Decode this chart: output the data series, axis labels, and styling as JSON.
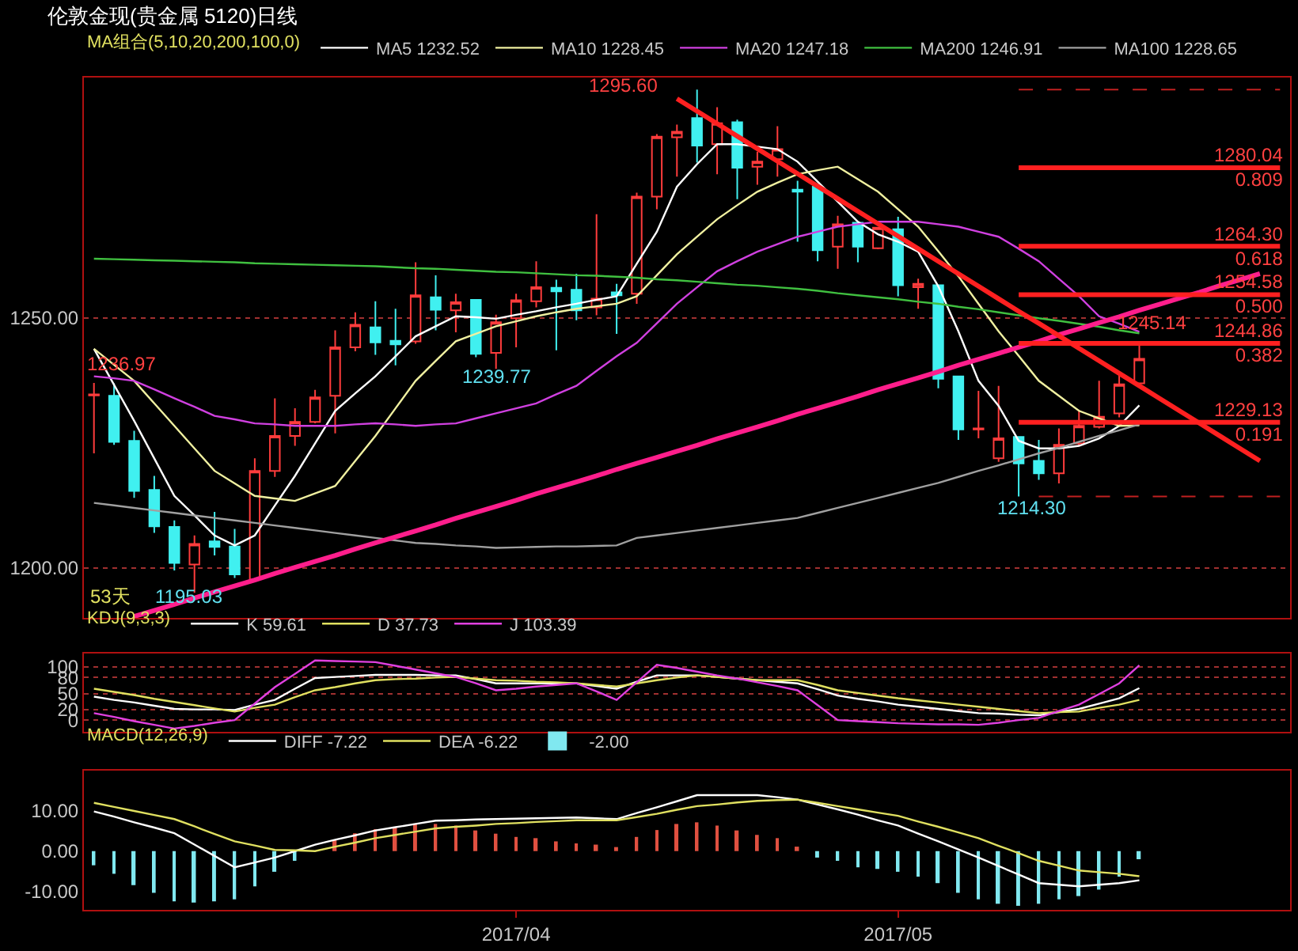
{
  "chart_data": [
    {
      "type": "candlestick",
      "title": "伦敦金现(贵金属 5120)日线",
      "legend_title": "MA组合(5,10,20,200,100,0)",
      "legend": "top",
      "grid": "y",
      "tick_labels": "y",
      "categories": [
        null,
        null,
        null,
        null,
        null,
        null,
        null,
        null,
        null,
        null,
        null,
        null,
        null,
        null,
        null,
        null,
        null,
        null,
        null,
        null,
        null,
        "2017/04",
        null,
        null,
        null,
        null,
        null,
        null,
        null,
        null,
        null,
        null,
        null,
        null,
        null,
        null,
        null,
        null,
        null,
        null,
        "2017/05",
        null,
        null,
        null,
        null,
        null,
        null,
        null,
        null,
        null,
        null,
        null,
        null,
        null,
        null,
        null,
        null,
        null,
        null,
        null
      ],
      "ohlc": [
        [
          1234.5,
          1236.97,
          1222.9,
          1234.7
        ],
        [
          1234.4,
          1236.9,
          1224.6,
          1225.2
        ],
        [
          1225.4,
          1227.4,
          1214.0,
          1215.4
        ],
        [
          1215.6,
          1218.4,
          1207.0,
          1208.3
        ],
        [
          1208.2,
          1209.5,
          1199.5,
          1201.0
        ],
        [
          1200.7,
          1206.5,
          1195.03,
          1204.8
        ],
        [
          1205.3,
          1211.2,
          1202.5,
          1204.2
        ],
        [
          1204.3,
          1207.8,
          1198.0,
          1198.7
        ],
        [
          1197.7,
          1221.9,
          1197.5,
          1219.4
        ],
        [
          1219.4,
          1233.9,
          1218.2,
          1226.4
        ],
        [
          1226.4,
          1231.9,
          1224.4,
          1229.2
        ],
        [
          1229.2,
          1235.6,
          1228.9,
          1234.1
        ],
        [
          1234.4,
          1247.5,
          1226.9,
          1244.1
        ],
        [
          1244.1,
          1251.1,
          1243.3,
          1248.6
        ],
        [
          1248.1,
          1253.3,
          1242.6,
          1245.1
        ],
        [
          1245.4,
          1251.8,
          1240.5,
          1244.7
        ],
        [
          1245.3,
          1261.1,
          1244.8,
          1254.5
        ],
        [
          1254.1,
          1258.5,
          1247.5,
          1251.6
        ],
        [
          1251.5,
          1254.8,
          1247.1,
          1253.1
        ],
        [
          1253.6,
          1253.6,
          1242.1,
          1242.8
        ],
        [
          1243.0,
          1250.6,
          1239.77,
          1249.1
        ],
        [
          1249.9,
          1254.8,
          1244.1,
          1253.5
        ],
        [
          1253.3,
          1261.3,
          1252.1,
          1256.1
        ],
        [
          1256.0,
          1257.6,
          1243.5,
          1255.3
        ],
        [
          1255.6,
          1258.8,
          1249.5,
          1251.5
        ],
        [
          1252.1,
          1270.7,
          1250.5,
          1253.8
        ],
        [
          1255.1,
          1256.8,
          1246.8,
          1254.5
        ],
        [
          1254.8,
          1275.0,
          1252.8,
          1274.2
        ],
        [
          1274.2,
          1286.7,
          1271.7,
          1286.2
        ],
        [
          1286.1,
          1288.6,
          1278.2,
          1287.2
        ],
        [
          1289.9,
          1295.6,
          1281.0,
          1284.4
        ],
        [
          1284.7,
          1292.1,
          1278.7,
          1288.9
        ],
        [
          1289.1,
          1289.6,
          1273.7,
          1280.0
        ],
        [
          1280.2,
          1283.2,
          1276.6,
          1281.2
        ],
        [
          1281.7,
          1288.3,
          1278.2,
          1283.7
        ],
        [
          1275.6,
          1277.4,
          1265.2,
          1275.2
        ],
        [
          1276.2,
          1276.2,
          1261.3,
          1263.5
        ],
        [
          1264.2,
          1270.4,
          1259.8,
          1268.7
        ],
        [
          1269.0,
          1269.0,
          1261.1,
          1264.2
        ],
        [
          1263.9,
          1268.0,
          1263.7,
          1268.0
        ],
        [
          1267.7,
          1270.2,
          1254.3,
          1256.5
        ],
        [
          1256.1,
          1257.8,
          1251.8,
          1256.8
        ],
        [
          1256.5,
          1256.5,
          1235.9,
          1237.8
        ],
        [
          1238.3,
          1238.3,
          1225.6,
          1227.7
        ],
        [
          1227.7,
          1235.4,
          1225.9,
          1227.9
        ],
        [
          1221.9,
          1236.4,
          1221.2,
          1225.9
        ],
        [
          1226.2,
          1226.2,
          1214.3,
          1220.9
        ],
        [
          1221.4,
          1225.6,
          1217.6,
          1218.9
        ],
        [
          1218.9,
          1227.9,
          1216.9,
          1224.6
        ],
        [
          1224.9,
          1231.6,
          1224.4,
          1228.4
        ],
        [
          1228.2,
          1237.4,
          1227.9,
          1230.2
        ],
        [
          1230.9,
          1239.3,
          1230.1,
          1236.7
        ],
        [
          1236.9,
          1245.14,
          1236.4,
          1241.8
        ],
        null,
        null,
        null,
        null,
        null,
        null,
        null
      ],
      "colors": [
        "#ff3c3c",
        "#40f0f0",
        "#40f0f0",
        "#40f0f0",
        "#40f0f0",
        "#ff3c3c",
        "#40f0f0",
        "#40f0f0",
        "#ff3c3c",
        "#ff3c3c",
        "#ff3c3c",
        "#ff3c3c",
        "#ff3c3c",
        "#ff3c3c",
        "#40f0f0",
        "#40f0f0",
        "#ff3c3c",
        "#40f0f0",
        "#ff3c3c",
        "#40f0f0",
        "#ff3c3c",
        "#ff3c3c",
        "#ff3c3c",
        "#40f0f0",
        "#40f0f0",
        "#ff3c3c",
        "#40f0f0",
        "#ff3c3c",
        "#ff3c3c",
        "#ff3c3c",
        "#40f0f0",
        "#ff3c3c",
        "#40f0f0",
        "#ff3c3c",
        "#ff3c3c",
        "#40f0f0",
        "#40f0f0",
        "#ff3c3c",
        "#40f0f0",
        "#ff3c3c",
        "#40f0f0",
        "#ff3c3c",
        "#40f0f0",
        "#40f0f0",
        "#ff3c3c",
        "#ff3c3c",
        "#40f0f0",
        "#40f0f0",
        "#ff3c3c",
        "#ff3c3c",
        "#ff3c3c",
        "#ff3c3c",
        "#ff3c3c",
        "#ff3c3c",
        "#ff3c3c",
        "#ff3c3c",
        "#ff3c3c",
        "#ff3c3c",
        "#ff3c3c",
        "#ff3c3c"
      ],
      "ylim": [
        1190,
        1298
      ],
      "yticks": [
        {
          "value": 1200,
          "label": "1200.00"
        },
        {
          "value": 1250,
          "label": "1250.00"
        }
      ],
      "series": [
        {
          "type": "line",
          "name": "MA5 1232.52",
          "color": "#ffffff",
          "values": [
            1243.8,
            1236.6,
            1229.4,
            1221.9,
            1214.4,
            1210.5,
            1206.5,
            1204.5,
            1206.5,
            1212.5,
            1218.4,
            1224.9,
            1231.4,
            1234.9,
            1238.3,
            1242.3,
            1246.3,
            1248.3,
            1250.3,
            1250.1,
            1249.8,
            1250.6,
            1251.3,
            1252.1,
            1252.8,
            1253.6,
            1254.3,
            1260.8,
            1267.2,
            1276.2,
            1280.7,
            1284.7,
            1284.7,
            1284.2,
            1283.7,
            1281.2,
            1277.2,
            1273.2,
            1269.2,
            1266.7,
            1265.2,
            1263.2,
            1256.3,
            1247.3,
            1237.4,
            1232.4,
            1225.4,
            1223.9,
            1223.9,
            1224.4,
            1225.9,
            1228.4,
            1232.5,
            null,
            null,
            null,
            null,
            null,
            null,
            null
          ]
        },
        {
          "type": "line",
          "name": "MA10 1228.45",
          "color": "#f0f0a0",
          "values": [
            1243.8,
            1240.6,
            1237.4,
            1232.9,
            1228.4,
            1223.9,
            1219.4,
            1216.9,
            1214.4,
            1213.9,
            1213.4,
            1214.9,
            1216.4,
            1221.4,
            1226.4,
            1231.9,
            1237.4,
            1241.4,
            1245.3,
            1246.8,
            1248.3,
            1249.3,
            1250.3,
            1251.1,
            1251.8,
            1252.3,
            1252.8,
            1254.3,
            1258.5,
            1262.7,
            1266.2,
            1269.7,
            1272.5,
            1275.2,
            1277.0,
            1278.7,
            1279.5,
            1280.2,
            1277.7,
            1275.2,
            1271.7,
            1268.2,
            1263.3,
            1258.3,
            1252.8,
            1247.3,
            1242.4,
            1237.4,
            1234.4,
            1231.4,
            1229.9,
            1228.4,
            1228.5,
            null,
            null,
            null,
            null,
            null,
            null,
            null
          ]
        },
        {
          "type": "line",
          "name": "MA20 1247.18",
          "color": "#d040e0",
          "values": [
            1238.3,
            1237.9,
            1237.4,
            1235.7,
            1233.9,
            1232.2,
            1230.4,
            1229.7,
            1228.9,
            1228.7,
            1228.4,
            1228.4,
            1228.4,
            1228.7,
            1228.9,
            1228.7,
            1228.4,
            1228.7,
            1228.9,
            1229.9,
            1230.9,
            1231.9,
            1232.9,
            1234.7,
            1236.4,
            1239.4,
            1242.3,
            1245.0,
            1248.9,
            1252.8,
            1256.1,
            1259.3,
            1261.3,
            1263.2,
            1264.7,
            1266.2,
            1267.2,
            1268.2,
            1268.7,
            1269.2,
            1269.2,
            1269.2,
            1268.7,
            1268.2,
            1267.2,
            1266.2,
            1263.8,
            1261.3,
            1257.8,
            1254.3,
            1250.3,
            1248.8,
            1247.2,
            null,
            null,
            null,
            null,
            null,
            null,
            null
          ]
        },
        {
          "type": "line",
          "name": "MA200 1246.91",
          "color": "#40c040",
          "values": [
            1261.8,
            1261.7,
            1261.6,
            1261.5,
            1261.4,
            1261.3,
            1261.2,
            1261.1,
            1260.9,
            1260.8,
            1260.7,
            1260.6,
            1260.5,
            1260.4,
            1260.3,
            1260.1,
            1259.9,
            1259.8,
            1259.6,
            1259.4,
            1259.2,
            1259.1,
            1258.9,
            1258.7,
            1258.5,
            1258.4,
            1258.2,
            1258.0,
            1257.7,
            1257.5,
            1257.2,
            1256.9,
            1256.6,
            1256.4,
            1256.1,
            1255.8,
            1255.4,
            1254.9,
            1254.5,
            1254.1,
            1253.7,
            1253.2,
            1252.8,
            1252.2,
            1251.7,
            1251.1,
            1250.5,
            1249.9,
            1249.4,
            1248.8,
            1248.2,
            1247.5,
            1246.9,
            null,
            null,
            null,
            null,
            null,
            null,
            null
          ]
        },
        {
          "type": "line",
          "name": "MA100 1228.65",
          "color": "#a0a0a0",
          "values": [
            1213.0,
            1212.5,
            1212.0,
            1211.5,
            1211.0,
            1210.5,
            1210.0,
            1209.5,
            1209.0,
            1208.5,
            1208.0,
            1207.5,
            1207.0,
            1206.5,
            1206.0,
            1205.5,
            1205.0,
            1204.8,
            1204.5,
            1204.3,
            1204.0,
            1204.1,
            1204.2,
            1204.3,
            1204.3,
            1204.4,
            1204.5,
            1206.0,
            1206.5,
            1207.0,
            1207.5,
            1208.0,
            1208.5,
            1209.0,
            1209.5,
            1210.0,
            1211.0,
            1212.0,
            1213.0,
            1214.0,
            1215.0,
            1216.0,
            1217.0,
            1218.2,
            1219.4,
            1220.5,
            1221.7,
            1222.9,
            1224.0,
            1225.2,
            1226.4,
            1227.5,
            1228.7,
            null,
            null,
            null,
            null,
            null,
            null,
            null
          ]
        },
        {
          "type": "line",
          "color": "#ff1e8c",
          "values": [
            null,
            null,
            1190.3,
            1191.5,
            1192.7,
            1194.0,
            1195.2,
            1196.4,
            1197.6,
            1198.9,
            1200.1,
            1201.3,
            1202.5,
            1203.8,
            1205.0,
            1206.2,
            1207.4,
            1208.6,
            1209.9,
            1211.1,
            1212.3,
            1213.5,
            1214.8,
            1216.0,
            1217.2,
            1218.4,
            1219.7,
            1220.9,
            1222.1,
            1223.3,
            1224.5,
            1225.8,
            1227.0,
            1228.2,
            1229.4,
            1230.7,
            1231.9,
            1233.1,
            1234.3,
            1235.6,
            1236.8,
            1238.0,
            1239.2,
            1240.5,
            1241.7,
            1242.9,
            1244.1,
            1245.3,
            1246.6,
            1247.8,
            1249.0,
            1250.2,
            1251.5,
            1252.7,
            1253.9,
            1255.1,
            1256.4,
            1257.6,
            1258.8,
            null
          ]
        },
        {
          "type": "line",
          "color": "#ff2020",
          "values": [
            null,
            null,
            null,
            null,
            null,
            null,
            null,
            null,
            null,
            null,
            null,
            null,
            null,
            null,
            null,
            null,
            null,
            null,
            null,
            null,
            null,
            null,
            null,
            null,
            null,
            null,
            null,
            null,
            null,
            1293.8,
            1291.3,
            1288.8,
            1286.3,
            1283.8,
            1281.3,
            1278.8,
            1276.3,
            1273.8,
            1271.3,
            1268.8,
            1266.3,
            1263.8,
            1261.3,
            1258.8,
            1256.3,
            1253.8,
            1251.3,
            1248.9,
            1246.4,
            1243.9,
            1241.4,
            1238.9,
            1236.4,
            1233.9,
            1231.4,
            1228.9,
            1226.4,
            1223.9,
            1221.4,
            null
          ]
        },
        {
          "type": "line",
          "color": "#ff2020",
          "values": [
            null,
            null,
            null,
            null,
            null,
            null,
            null,
            null,
            null,
            null,
            null,
            null,
            null,
            null,
            null,
            null,
            null,
            null,
            null,
            null,
            null,
            null,
            null,
            null,
            null,
            null,
            null,
            null,
            null,
            null,
            null,
            null,
            null,
            null,
            null,
            null,
            null,
            null,
            null,
            null,
            null,
            null,
            null,
            null,
            null,
            null,
            1280.0,
            1280.0,
            1280.0,
            1280.0,
            1280.0,
            1280.0,
            1280.0,
            1280.0,
            1280.0,
            1280.0,
            1280.0,
            1280.0,
            1280.0,
            1280.0
          ]
        },
        {
          "type": "line",
          "color": "#ff2020",
          "values": [
            null,
            null,
            null,
            null,
            null,
            null,
            null,
            null,
            null,
            null,
            null,
            null,
            null,
            null,
            null,
            null,
            null,
            null,
            null,
            null,
            null,
            null,
            null,
            null,
            null,
            null,
            null,
            null,
            null,
            null,
            null,
            null,
            null,
            null,
            null,
            null,
            null,
            null,
            null,
            null,
            null,
            null,
            null,
            null,
            null,
            null,
            1264.3,
            1264.3,
            1264.3,
            1264.3,
            1264.3,
            1264.3,
            1264.3,
            1264.3,
            1264.3,
            1264.3,
            1264.3,
            1264.3,
            1264.3,
            1264.3
          ]
        },
        {
          "type": "line",
          "color": "#ff2020",
          "values": [
            null,
            null,
            null,
            null,
            null,
            null,
            null,
            null,
            null,
            null,
            null,
            null,
            null,
            null,
            null,
            null,
            null,
            null,
            null,
            null,
            null,
            null,
            null,
            null,
            null,
            null,
            null,
            null,
            null,
            null,
            null,
            null,
            null,
            null,
            null,
            null,
            null,
            null,
            null,
            null,
            null,
            null,
            null,
            null,
            null,
            null,
            1254.6,
            1254.6,
            1254.6,
            1254.6,
            1254.6,
            1254.6,
            1254.6,
            1254.6,
            1254.6,
            1254.6,
            1254.6,
            1254.6,
            1254.6,
            1254.6
          ]
        },
        {
          "type": "line",
          "color": "#ff2020",
          "values": [
            null,
            null,
            null,
            null,
            null,
            null,
            null,
            null,
            null,
            null,
            null,
            null,
            null,
            null,
            null,
            null,
            null,
            null,
            null,
            null,
            null,
            null,
            null,
            null,
            null,
            null,
            null,
            null,
            null,
            null,
            null,
            null,
            null,
            null,
            null,
            null,
            null,
            null,
            null,
            null,
            null,
            null,
            null,
            null,
            null,
            null,
            1244.9,
            1244.9,
            1244.9,
            1244.9,
            1244.9,
            1244.9,
            1244.9,
            1244.9,
            1244.9,
            1244.9,
            1244.9,
            1244.9,
            1244.9,
            1244.9
          ]
        },
        {
          "type": "line",
          "color": "#ff2020",
          "values": [
            null,
            null,
            null,
            null,
            null,
            null,
            null,
            null,
            null,
            null,
            null,
            null,
            null,
            null,
            null,
            null,
            null,
            null,
            null,
            null,
            null,
            null,
            null,
            null,
            null,
            null,
            null,
            null,
            null,
            null,
            null,
            null,
            null,
            null,
            null,
            null,
            null,
            null,
            null,
            null,
            null,
            null,
            null,
            null,
            null,
            null,
            1229.1,
            1229.1,
            1229.1,
            1229.1,
            1229.1,
            1229.1,
            1229.1,
            1229.1,
            1229.1,
            1229.1,
            1229.1,
            1229.1,
            1229.1,
            1229.1
          ]
        },
        {
          "type": "line",
          "color": "#c02020",
          "line_style": "dashed",
          "values": [
            null,
            null,
            null,
            null,
            null,
            null,
            null,
            null,
            null,
            null,
            null,
            null,
            null,
            null,
            null,
            null,
            null,
            null,
            null,
            null,
            null,
            null,
            null,
            null,
            null,
            null,
            null,
            null,
            null,
            null,
            null,
            null,
            null,
            null,
            null,
            null,
            null,
            null,
            null,
            null,
            null,
            null,
            null,
            null,
            null,
            null,
            1295.6,
            1295.6,
            1295.6,
            1295.6,
            1295.6,
            1295.6,
            1295.6,
            1295.6,
            1295.6,
            1295.6,
            1295.6,
            1295.6,
            1295.6,
            1295.6
          ]
        },
        {
          "type": "line",
          "color": "#c02020",
          "line_style": "dashed",
          "values": [
            null,
            null,
            null,
            null,
            null,
            null,
            null,
            null,
            null,
            null,
            null,
            null,
            null,
            null,
            null,
            null,
            null,
            null,
            null,
            null,
            null,
            null,
            null,
            null,
            null,
            null,
            null,
            null,
            null,
            null,
            null,
            null,
            null,
            null,
            null,
            null,
            null,
            null,
            null,
            null,
            null,
            null,
            null,
            null,
            null,
            null,
            null,
            1214.3,
            1214.3,
            1214.3,
            1214.3,
            1214.3,
            1214.3,
            1214.3,
            1214.3,
            1214.3,
            1214.3,
            1214.3,
            1214.3,
            1214.3
          ]
        }
      ],
      "annotations": [
        "53天",
        "1236.97",
        "1195.03",
        "1239.77",
        "1295.60",
        "1214.30",
        "1245.14",
        {
          "text": "1280.04\n0.809",
          "y": 1280.0
        },
        {
          "text": "1264.30\n0.618",
          "y": 1264.3
        },
        {
          "text": "1254.58\n0.500",
          "y": 1254.6
        },
        {
          "text": "1244.86\n0.382",
          "y": 1244.9
        },
        {
          "text": "1229.13\n0.191",
          "y": 1229.1
        }
      ]
    },
    {
      "type": "line",
      "legend_title": "KDJ(9,3,3)",
      "legend": "top left",
      "grid": "y",
      "tick_labels": "y",
      "ylim": [
        -22,
        125
      ],
      "yticks": [
        0,
        20,
        50,
        80,
        100
      ],
      "categories": [
        null,
        null,
        null,
        null,
        null,
        null,
        null,
        null,
        null,
        null,
        null,
        null,
        null,
        null,
        null,
        null,
        null,
        null,
        null,
        null,
        null,
        "2017/04",
        null,
        null,
        null,
        null,
        null,
        null,
        null,
        null,
        null,
        null,
        null,
        null,
        null,
        null,
        null,
        null,
        null,
        null,
        "2017/05",
        null,
        null,
        null,
        null,
        null,
        null,
        null,
        null,
        null,
        null,
        null,
        null,
        null,
        null,
        null,
        null,
        null,
        null,
        null
      ],
      "series": [
        {
          "name": "K 59.61",
          "color": "#ffffff",
          "values": [
            44,
            38,
            33,
            27,
            21,
            20,
            20,
            19,
            29,
            38,
            59,
            79,
            81,
            83,
            85,
            85,
            85,
            84,
            84,
            77,
            69,
            69,
            69,
            69,
            69,
            64,
            59,
            72,
            84,
            84,
            84,
            81,
            78,
            75,
            72,
            69,
            58,
            46,
            40,
            35,
            29,
            25,
            21,
            17,
            13,
            12,
            10,
            9,
            15,
            21,
            31,
            41,
            60,
            null,
            null,
            null,
            null,
            null,
            null,
            null
          ]
        },
        {
          "name": "D 37.73",
          "color": "#e0e060",
          "values": [
            59,
            53,
            47,
            40,
            34,
            28,
            22,
            16,
            23,
            29,
            43,
            56,
            62,
            69,
            75,
            77,
            78,
            80,
            81,
            78,
            75,
            74,
            72,
            71,
            69,
            66,
            63,
            69,
            75,
            80,
            84,
            81,
            78,
            75,
            75,
            75,
            66,
            56,
            51,
            46,
            41,
            37,
            33,
            29,
            25,
            21,
            17,
            13,
            15,
            16,
            23,
            29,
            38,
            null,
            null,
            null,
            null,
            null,
            null,
            null
          ]
        },
        {
          "name": "J 103.39",
          "color": "#e040e0",
          "values": [
            13,
            6,
            -2,
            -9,
            -16,
            -11,
            -5,
            0,
            31,
            62,
            87,
            112,
            111,
            110,
            109,
            102,
            95,
            88,
            81,
            69,
            56,
            59,
            63,
            66,
            69,
            54,
            38,
            71,
            104,
            98,
            91,
            84,
            78,
            71,
            64,
            56,
            28,
            0,
            -2,
            -4,
            -6,
            -7,
            -8,
            -8,
            -9,
            -5,
            0,
            4,
            17,
            29,
            49,
            69,
            103,
            null,
            null,
            null,
            null,
            null,
            null,
            null
          ]
        }
      ]
    },
    {
      "type": "line",
      "legend_title": "MACD(12,26,9)",
      "legend": "top left",
      "ylim": [
        -14.5,
        19.8
      ],
      "yticks": [
        {
          "value": -10,
          "label": "-10.00"
        },
        {
          "value": 0,
          "label": "0.00"
        },
        {
          "value": 10,
          "label": "10.00"
        }
      ],
      "categories": [
        null,
        null,
        null,
        null,
        null,
        null,
        null,
        null,
        null,
        null,
        null,
        null,
        null,
        null,
        null,
        null,
        null,
        null,
        null,
        null,
        null,
        "2017/04",
        null,
        null,
        null,
        null,
        null,
        null,
        null,
        null,
        null,
        null,
        null,
        null,
        null,
        null,
        null,
        null,
        null,
        null,
        "2017/05",
        null,
        null,
        null,
        null,
        null,
        null,
        null,
        null,
        null,
        null,
        null,
        null,
        null,
        null,
        null,
        null,
        null,
        null,
        null
      ],
      "series": [
        {
          "name": "DIFF -7.22",
          "color": "#ffffff",
          "values": [
            9.8,
            8.5,
            7.1,
            5.8,
            4.4,
            1.6,
            -1.2,
            -4.0,
            -2.8,
            -1.6,
            0,
            1.6,
            2.8,
            3.9,
            5.1,
            5.9,
            6.7,
            7.5,
            7.6,
            7.8,
            7.9,
            8.0,
            8.1,
            8.2,
            8.3,
            8.1,
            7.9,
            9.4,
            10.8,
            12.3,
            13.8,
            13.8,
            13.8,
            13.8,
            13.3,
            12.7,
            11.5,
            10.3,
            9.0,
            7.6,
            6.3,
            4.3,
            2.4,
            0.4,
            -1.6,
            -3.7,
            -5.8,
            -7.9,
            -8.3,
            -8.7,
            -8.3,
            -7.9,
            -7.2,
            null,
            null,
            null,
            null,
            null,
            null,
            null
          ]
        },
        {
          "name": "DEA -6.22",
          "color": "#e0e060",
          "values": [
            11.9,
            10.9,
            9.9,
            8.9,
            7.9,
            6.1,
            4.2,
            2.4,
            1.4,
            0.3,
            0.2,
            0,
            1.1,
            2.1,
            3.2,
            4.0,
            4.8,
            5.6,
            6.0,
            6.3,
            6.7,
            6.9,
            7.2,
            7.4,
            7.6,
            7.6,
            7.6,
            8.4,
            9.2,
            10.2,
            11.1,
            11.5,
            12.0,
            12.4,
            12.6,
            12.7,
            11.9,
            11.1,
            10.3,
            9.5,
            8.7,
            7.3,
            6.0,
            4.6,
            3.2,
            1.3,
            -0.5,
            -2.4,
            -3.6,
            -4.8,
            -5.2,
            -5.6,
            -6.2,
            null,
            null,
            null,
            null,
            null,
            null,
            null
          ]
        },
        {
          "type": "bar",
          "name": "-2.00",
          "values": [
            -3.5,
            -5.6,
            -8.4,
            -10.3,
            -12.4,
            -12.7,
            -12.4,
            -11.9,
            -8.7,
            -5.1,
            -2.4,
            0,
            2.7,
            4.4,
            5.4,
            6.0,
            6.8,
            6.7,
            6.3,
            5.1,
            4.3,
            3.5,
            3.2,
            2.4,
            1.9,
            1.6,
            1.0,
            3.5,
            5.2,
            6.7,
            7.1,
            6.3,
            5.1,
            4.0,
            3.2,
            1.1,
            -1.6,
            -2.4,
            -4.0,
            -4.4,
            -5.1,
            -6.3,
            -7.9,
            -10.3,
            -11.9,
            -13.0,
            -13.5,
            -13.0,
            -11.9,
            -11.1,
            -9.5,
            -6.3,
            -2.0,
            null,
            null,
            null,
            null,
            null,
            null,
            null
          ],
          "colors": [
            "#80e8f0",
            "#80e8f0",
            "#80e8f0",
            "#80e8f0",
            "#80e8f0",
            "#80e8f0",
            "#80e8f0",
            "#80e8f0",
            "#80e8f0",
            "#80e8f0",
            "#80e8f0",
            "#80e8f0",
            "#e05040",
            "#e05040",
            "#e05040",
            "#e05040",
            "#e05040",
            "#e05040",
            "#e05040",
            "#e05040",
            "#e05040",
            "#e05040",
            "#e05040",
            "#e05040",
            "#e05040",
            "#e05040",
            "#e05040",
            "#e05040",
            "#e05040",
            "#e05040",
            "#e05040",
            "#e05040",
            "#e05040",
            "#e05040",
            "#e05040",
            "#e05040",
            "#80e8f0",
            "#80e8f0",
            "#80e8f0",
            "#80e8f0",
            "#80e8f0",
            "#80e8f0",
            "#80e8f0",
            "#80e8f0",
            "#80e8f0",
            "#80e8f0",
            "#80e8f0",
            "#80e8f0",
            "#80e8f0",
            "#80e8f0",
            "#80e8f0",
            "#80e8f0",
            "#80e8f0",
            "#80e8f0",
            "#80e8f0",
            "#80e8f0",
            "#80e8f0",
            "#80e8f0",
            "#80e8f0",
            "#80e8f0"
          ]
        }
      ]
    }
  ]
}
